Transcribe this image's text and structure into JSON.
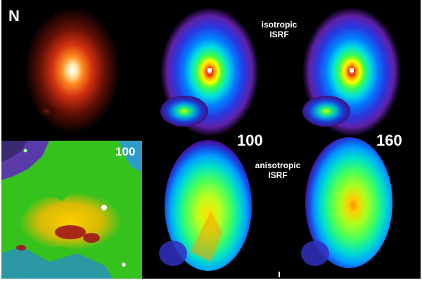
{
  "figure": {
    "panel_letter": "N",
    "top_right_note_line1": "isotropic",
    "top_right_note_line2": "ISRF",
    "middle_note_line1": "anisotropic",
    "middle_note_line2": "ISRF",
    "map_label": "100",
    "mid_label": "100",
    "right_label": "160"
  }
}
